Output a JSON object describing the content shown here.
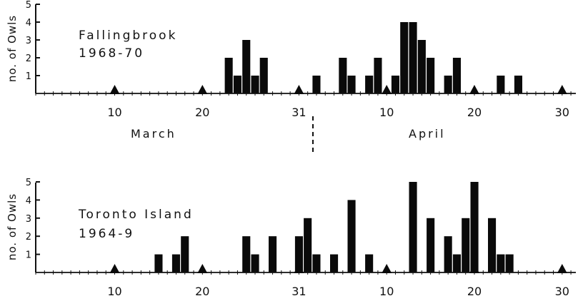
{
  "chart_data": [
    {
      "type": "bar",
      "title_line1": "Fallingbrook",
      "title_line2": "1968-70",
      "ylabel": "no. of Owls",
      "yticks": [
        "1",
        "2",
        "3",
        "4",
        "5"
      ],
      "ylim": [
        0,
        5
      ],
      "x_tick_labels": [
        "10",
        "20",
        "31",
        "10",
        "20",
        "30"
      ],
      "month_labels": [
        "March",
        "April"
      ],
      "series": [
        {
          "values": [
            {
              "date": "Mar 23",
              "count": 2
            },
            {
              "date": "Mar 24",
              "count": 1
            },
            {
              "date": "Mar 25",
              "count": 3
            },
            {
              "date": "Mar 26",
              "count": 1
            },
            {
              "date": "Mar 27",
              "count": 2
            },
            {
              "date": "Apr 2",
              "count": 1
            },
            {
              "date": "Apr 5",
              "count": 2
            },
            {
              "date": "Apr 6",
              "count": 1
            },
            {
              "date": "Apr 8",
              "count": 1
            },
            {
              "date": "Apr 9",
              "count": 2
            },
            {
              "date": "Apr 11",
              "count": 1
            },
            {
              "date": "Apr 12",
              "count": 4
            },
            {
              "date": "Apr 13",
              "count": 4
            },
            {
              "date": "Apr 14",
              "count": 3
            },
            {
              "date": "Apr 15",
              "count": 2
            },
            {
              "date": "Apr 17",
              "count": 1
            },
            {
              "date": "Apr 18",
              "count": 2
            },
            {
              "date": "Apr 23",
              "count": 1
            },
            {
              "date": "Apr 25",
              "count": 1
            }
          ]
        }
      ]
    },
    {
      "type": "bar",
      "title_line1": "Toronto  Island",
      "title_line2": "1964-9",
      "ylabel": "no. of Owls",
      "yticks": [
        "1",
        "2",
        "3",
        "4",
        "5"
      ],
      "ylim": [
        0,
        5
      ],
      "x_tick_labels": [
        "10",
        "20",
        "31",
        "10",
        "20",
        "30"
      ],
      "series": [
        {
          "values": [
            {
              "date": "Mar 15",
              "count": 1
            },
            {
              "date": "Mar 17",
              "count": 1
            },
            {
              "date": "Mar 18",
              "count": 2
            },
            {
              "date": "Mar 25",
              "count": 2
            },
            {
              "date": "Mar 26",
              "count": 1
            },
            {
              "date": "Mar 28",
              "count": 2
            },
            {
              "date": "Mar 31",
              "count": 2
            },
            {
              "date": "Apr 1",
              "count": 3
            },
            {
              "date": "Apr 2",
              "count": 1
            },
            {
              "date": "Apr 4",
              "count": 1
            },
            {
              "date": "Apr 6",
              "count": 4
            },
            {
              "date": "Apr 8",
              "count": 1
            },
            {
              "date": "Apr 13",
              "count": 5
            },
            {
              "date": "Apr 15",
              "count": 3
            },
            {
              "date": "Apr 17",
              "count": 2
            },
            {
              "date": "Apr 18",
              "count": 1
            },
            {
              "date": "Apr 19",
              "count": 3
            },
            {
              "date": "Apr 20",
              "count": 5
            },
            {
              "date": "Apr 22",
              "count": 3
            },
            {
              "date": "Apr 23",
              "count": 1
            },
            {
              "date": "Apr 24",
              "count": 1
            }
          ]
        }
      ]
    }
  ]
}
